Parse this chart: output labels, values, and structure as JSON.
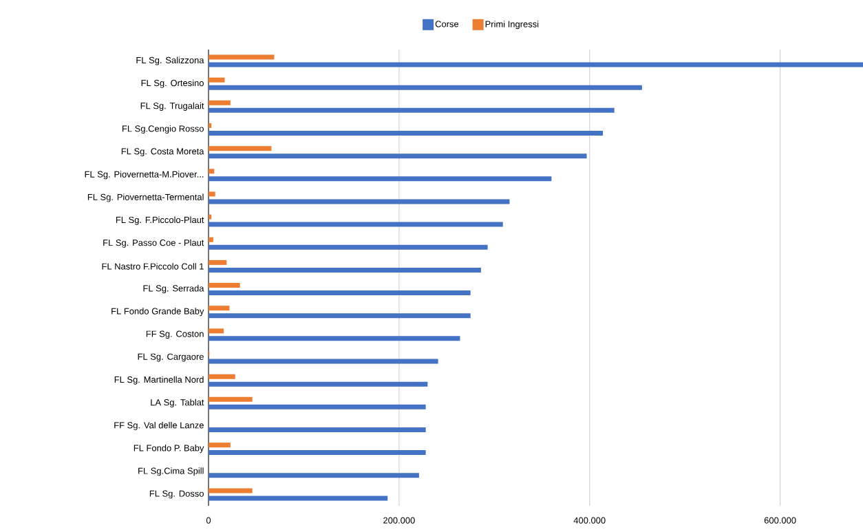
{
  "chart_data": {
    "type": "bar",
    "orientation": "horizontal",
    "categories": [
      "FL Sg. Salizzona",
      "FL Sg. Ortesino",
      "FL Sg. Trugalait",
      "FL Sg.Cengio Rosso",
      "FL Sg. Costa Moreta",
      "FL Sg. Piovernetta-M.Piover...",
      "FL Sg. Piovernetta-Termental",
      "FL Sg. F.Piccolo-Plaut",
      "FL Sg. Passo Coe - Plaut",
      "FL Nastro F.Piccolo Coll 1",
      "FL Sg. Serrada",
      "FL Fondo Grande Baby",
      "FF Sg. Coston",
      "FL Sg. Cargaore",
      "FL Sg. Martinella Nord",
      "LA Sg. Tablat",
      "FF Sg. Val delle Lanze",
      "FL Fondo P. Baby",
      "FL Sg.Cima Spill",
      "FL Sg. Dosso"
    ],
    "series": [
      {
        "name": "Corse",
        "color": "#4472c4",
        "values": [
          687000,
          455000,
          426000,
          414000,
          397000,
          360000,
          316000,
          309000,
          293000,
          286000,
          275000,
          275000,
          264000,
          241000,
          230000,
          228000,
          228000,
          228000,
          221000,
          188000
        ]
      },
      {
        "name": "Primi Ingressi",
        "color": "#ed7d31",
        "values": [
          69000,
          17000,
          23000,
          3000,
          66000,
          6000,
          7000,
          3000,
          5000,
          19000,
          33000,
          22000,
          16000,
          1000,
          28000,
          46000,
          0,
          23000,
          0,
          46000
        ]
      }
    ],
    "xlim": [
      0,
      687000
    ],
    "xticks": [
      0,
      {
        "value": 200000,
        "label": "200.000"
      },
      {
        "value": 400000,
        "label": "400.000"
      },
      {
        "value": 600000,
        "label": "600.000"
      }
    ],
    "grid": "x",
    "legend": "top"
  }
}
